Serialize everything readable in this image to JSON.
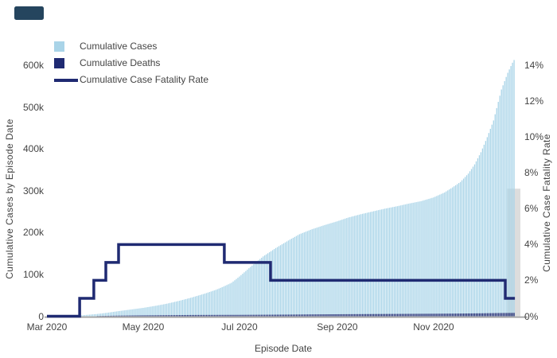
{
  "app": {
    "background": "#ffffff"
  },
  "toolbar": {
    "corner_button_color": "#25455e"
  },
  "legend": {
    "items": [
      {
        "label": "Cumulative Cases",
        "swatch": "square",
        "color": "#a9d4e8"
      },
      {
        "label": "Cumulative Deaths",
        "swatch": "square",
        "color": "#1f2a72"
      },
      {
        "label": "Cumulative Case Fatality Rate",
        "swatch": "line",
        "color": "#1f2a72"
      }
    ]
  },
  "chart_data": {
    "type": "bar",
    "title": "",
    "grid": false,
    "legend_position": "top-left",
    "x_axis": {
      "label": "Episode Date",
      "start_date": "Mar 1 2020",
      "domain_days": [
        0,
        300
      ],
      "tick_days": [
        0,
        61,
        122,
        184,
        245
      ],
      "tick_labels": [
        "Mar 2020",
        "May 2020",
        "Jul 2020",
        "Sep 2020",
        "Nov 2020"
      ]
    },
    "left_axis": {
      "label": "Cumulative Cases by Episode Date",
      "tick_values": [
        0,
        100000,
        200000,
        300000,
        400000,
        500000,
        600000
      ],
      "tick_labels": [
        "0",
        "100k",
        "200k",
        "300k",
        "400k",
        "500k",
        "600k"
      ],
      "max": 600000
    },
    "right_axis": {
      "label": "Cumulative Case Fatality Rate",
      "tick_values": [
        0,
        2,
        4,
        6,
        8,
        10,
        12,
        14
      ],
      "tick_labels": [
        "0%",
        "2%",
        "4%",
        "6%",
        "8%",
        "10%",
        "12%",
        "14%"
      ],
      "max": 14
    },
    "series": [
      {
        "name": "Cumulative Cases",
        "type": "bar",
        "axis": "left",
        "color": "#a9d4e8",
        "points_day_value": [
          [
            13,
            0
          ],
          [
            16,
            400
          ],
          [
            20,
            1500
          ],
          [
            25,
            3200
          ],
          [
            31,
            5000
          ],
          [
            38,
            8200
          ],
          [
            45,
            12000
          ],
          [
            53,
            16000
          ],
          [
            61,
            20000
          ],
          [
            69,
            25000
          ],
          [
            76,
            30000
          ],
          [
            84,
            37000
          ],
          [
            92,
            45000
          ],
          [
            100,
            54000
          ],
          [
            107,
            63000
          ],
          [
            112,
            71000
          ],
          [
            117,
            80000
          ],
          [
            122,
            95000
          ],
          [
            129,
            118000
          ],
          [
            137,
            143000
          ],
          [
            145,
            163000
          ],
          [
            153,
            181000
          ],
          [
            160,
            196000
          ],
          [
            168,
            208000
          ],
          [
            176,
            218000
          ],
          [
            184,
            227000
          ],
          [
            191,
            236000
          ],
          [
            199,
            244000
          ],
          [
            207,
            251000
          ],
          [
            214,
            257000
          ],
          [
            222,
            263000
          ],
          [
            229,
            269000
          ],
          [
            237,
            275000
          ],
          [
            245,
            284000
          ],
          [
            252,
            296000
          ],
          [
            257,
            308000
          ],
          [
            262,
            321000
          ],
          [
            267,
            341000
          ],
          [
            271,
            363000
          ],
          [
            275,
            392000
          ],
          [
            279,
            428000
          ],
          [
            283,
            468000
          ],
          [
            288,
            542000
          ],
          [
            292,
            582000
          ],
          [
            295,
            606000
          ],
          [
            297,
            619000
          ]
        ]
      },
      {
        "name": "Cumulative Deaths",
        "type": "bar",
        "axis": "left",
        "color": "#1f2a72",
        "points_day_value": [
          [
            20,
            60
          ],
          [
            25,
            250
          ],
          [
            31,
            500
          ],
          [
            38,
            1000
          ],
          [
            45,
            1500
          ],
          [
            53,
            1900
          ],
          [
            61,
            2200
          ],
          [
            76,
            2600
          ],
          [
            92,
            3000
          ],
          [
            107,
            3200
          ],
          [
            122,
            3300
          ],
          [
            137,
            3600
          ],
          [
            153,
            3900
          ],
          [
            168,
            4400
          ],
          [
            184,
            4800
          ],
          [
            199,
            5100
          ],
          [
            214,
            5400
          ],
          [
            229,
            5700
          ],
          [
            245,
            6000
          ],
          [
            260,
            6400
          ],
          [
            275,
            7000
          ],
          [
            285,
            7600
          ],
          [
            296,
            8000
          ]
        ]
      },
      {
        "name": "Cumulative Case Fatality Rate",
        "type": "step-line",
        "axis": "right",
        "color": "#1f2a72",
        "start": [
          0,
          0
        ],
        "steps_day_pct": [
          [
            20.7,
            1
          ],
          [
            29.7,
            2
          ],
          [
            37.3,
            3
          ],
          [
            45.4,
            4
          ],
          [
            112.4,
            3
          ],
          [
            141.7,
            2
          ],
          [
            290.4,
            1
          ]
        ],
        "end_day": 296.5
      }
    ],
    "last_bar_highlight": {
      "day_start": 291.5,
      "day_end": 300,
      "value": 305000,
      "color": "#d9d9d9"
    }
  }
}
